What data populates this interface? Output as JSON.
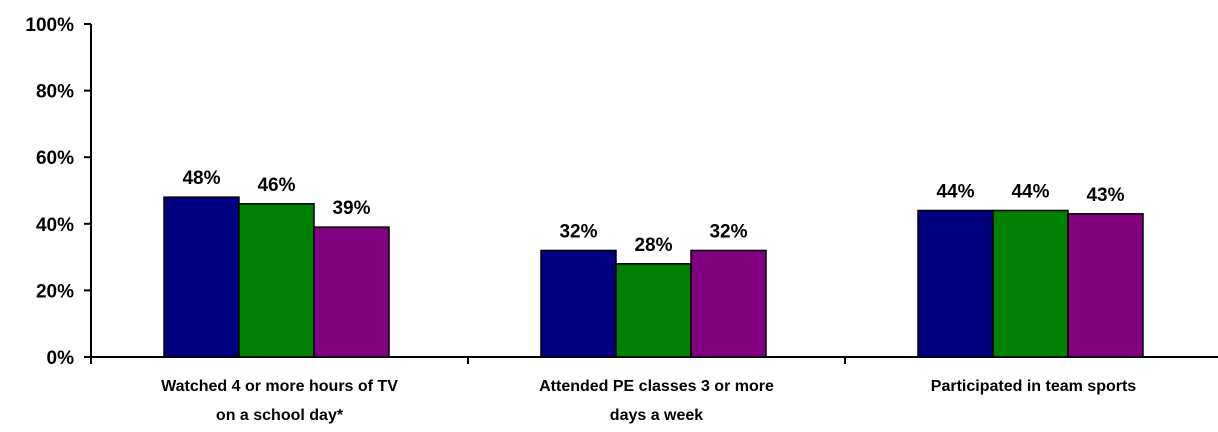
{
  "chart_data": {
    "type": "bar",
    "categories": [
      [
        "Watched 4 or more hours of TV",
        "on a school day*"
      ],
      [
        "Attended PE classes 3 or more",
        "days a week"
      ],
      [
        "Participated in team sports"
      ]
    ],
    "series": [
      {
        "values": [
          48,
          32,
          44
        ],
        "labels": [
          "48%",
          "32%",
          "44%"
        ],
        "color": "#000080"
      },
      {
        "values": [
          46,
          28,
          44
        ],
        "labels": [
          "46%",
          "28%",
          "44%"
        ],
        "color": "#008000"
      },
      {
        "values": [
          39,
          32,
          43
        ],
        "labels": [
          "39%",
          "32%",
          "43%"
        ],
        "color": "#800080"
      }
    ],
    "ylim": [
      0,
      100
    ],
    "yticks": [
      {
        "value": 0,
        "label": "0%"
      },
      {
        "value": 20,
        "label": "20%"
      },
      {
        "value": 40,
        "label": "40%"
      },
      {
        "value": 60,
        "label": "60%"
      },
      {
        "value": 80,
        "label": "80%"
      },
      {
        "value": 100,
        "label": "100%"
      }
    ],
    "grid": false,
    "legend": "none"
  }
}
